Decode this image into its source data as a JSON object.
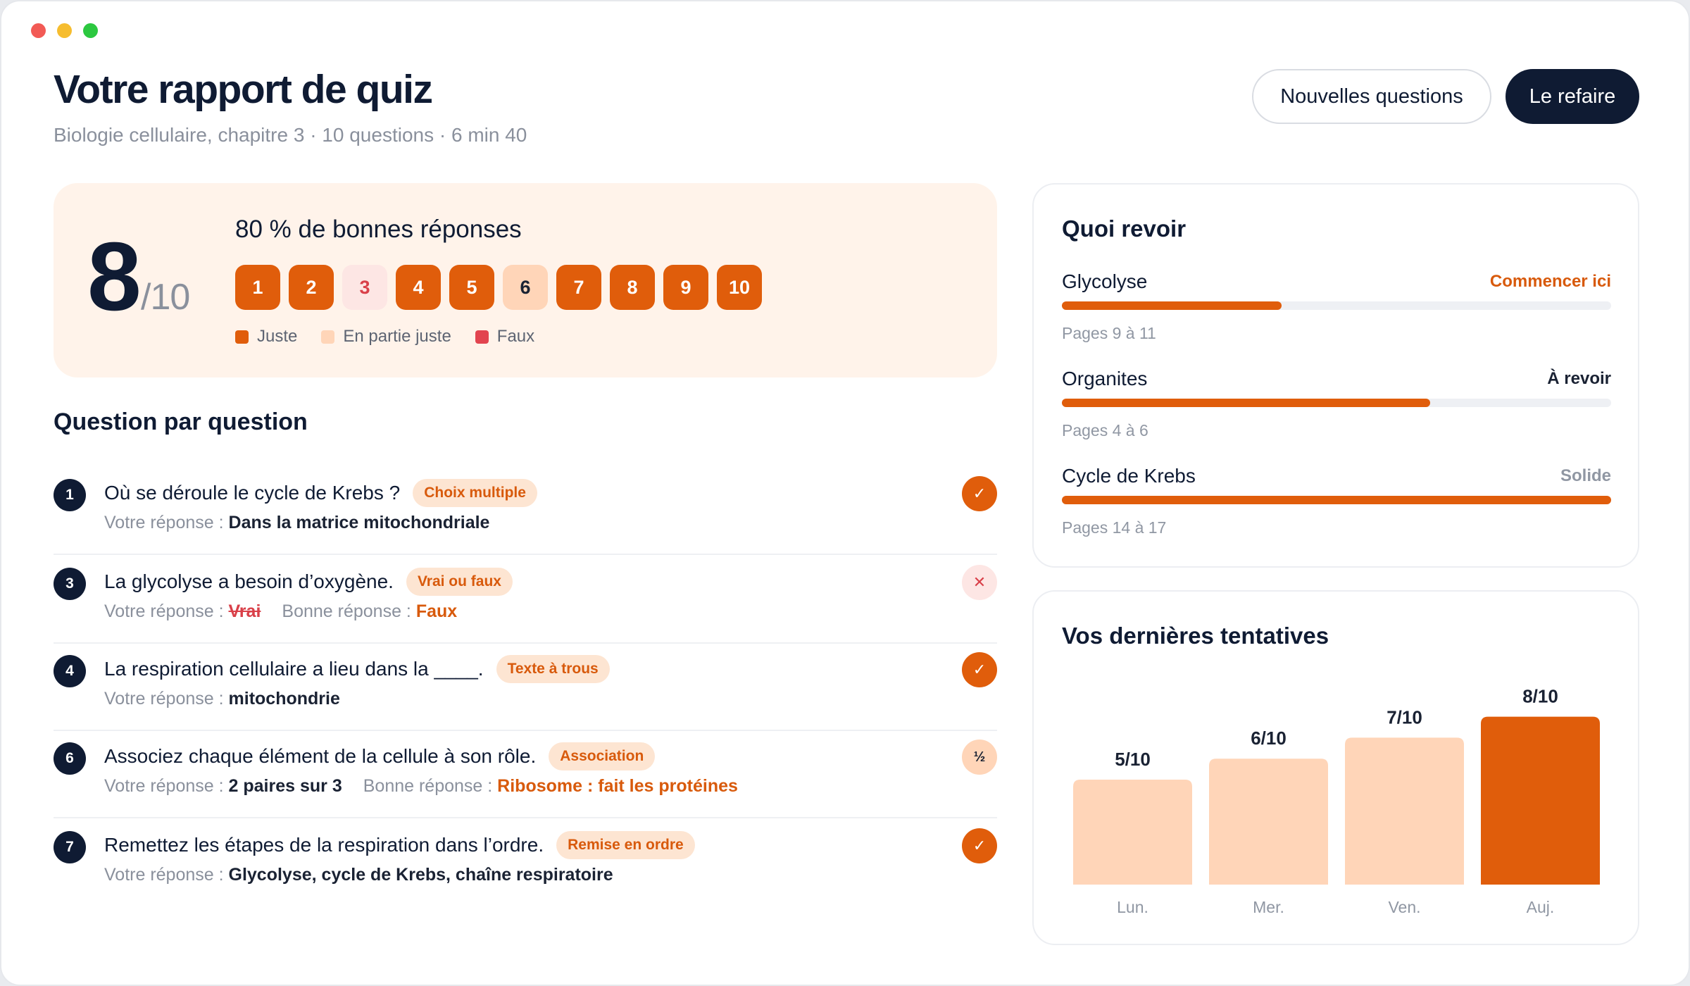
{
  "header": {
    "title": "Votre rapport de quiz",
    "subtitle": "Biologie cellulaire, chapitre 3 · 10 questions · 6 min 40",
    "new_questions_label": "Nouvelles questions",
    "retake_label": "Le refaire"
  },
  "score": {
    "value": "8",
    "denominator": "/10",
    "percent_text": "80 % de bonnes réponses",
    "questions": [
      {
        "label": "1",
        "status": "correct"
      },
      {
        "label": "2",
        "status": "correct"
      },
      {
        "label": "3",
        "status": "wrong"
      },
      {
        "label": "4",
        "status": "correct"
      },
      {
        "label": "5",
        "status": "correct"
      },
      {
        "label": "6",
        "status": "partial"
      },
      {
        "label": "7",
        "status": "correct"
      },
      {
        "label": "8",
        "status": "correct"
      },
      {
        "label": "9",
        "status": "correct"
      },
      {
        "label": "10",
        "status": "correct"
      }
    ],
    "legend": [
      {
        "label": "Juste",
        "color": "#e05d0b"
      },
      {
        "label": "En partie juste",
        "color": "#ffd5b8"
      },
      {
        "label": "Faux",
        "color": "#e2444f"
      }
    ]
  },
  "questions_section": {
    "title": "Question par question",
    "your_answer_label": "Votre réponse :",
    "correct_answer_label": "Bonne réponse :",
    "items": [
      {
        "num": "1",
        "text": "Où se déroule le cycle de Krebs ?",
        "tag": "Choix multiple",
        "answer": "Dans la matrice mitochondriale",
        "correct": "",
        "status": "ok",
        "status_glyph": "✓"
      },
      {
        "num": "3",
        "text": "La glycolyse a besoin d’oxygène.",
        "tag": "Vrai ou faux",
        "answer": "Vrai",
        "correct": "Faux",
        "status": "no",
        "status_glyph": "✕"
      },
      {
        "num": "4",
        "text": "La respiration cellulaire a lieu dans la ____.",
        "tag": "Texte à trous",
        "answer": "mitochondrie",
        "correct": "",
        "status": "ok",
        "status_glyph": "✓"
      },
      {
        "num": "6",
        "text": "Associez chaque élément de la cellule à son rôle.",
        "tag": "Association",
        "answer": "2 paires sur 3",
        "correct": "Ribosome : fait les protéines",
        "status": "half",
        "status_glyph": "½"
      },
      {
        "num": "7",
        "text": "Remettez les étapes de la respiration dans l’ordre.",
        "tag": "Remise en ordre",
        "answer": "Glycolyse, cycle de Krebs, chaîne respiratoire",
        "correct": "",
        "status": "ok",
        "status_glyph": "✓"
      }
    ]
  },
  "review": {
    "title": "Quoi revoir",
    "topics": [
      {
        "name": "Glycolyse",
        "state": "Commencer ici",
        "state_kind": "start",
        "pages": "Pages 9 à 11",
        "progress": 0.4
      },
      {
        "name": "Organites",
        "state": "À revoir",
        "state_kind": "revise",
        "pages": "Pages 4 à 6",
        "progress": 0.67
      },
      {
        "name": "Cycle de Krebs",
        "state": "Solide",
        "state_kind": "solid",
        "pages": "Pages 14 à 17",
        "progress": 1.0
      }
    ]
  },
  "attempts": {
    "title": "Vos dernières tentatives",
    "chart_data": {
      "type": "bar",
      "categories": [
        "Lun.",
        "Mer.",
        "Ven.",
        "Auj."
      ],
      "values": [
        5,
        6,
        7,
        8
      ],
      "data_labels": [
        "5/10",
        "6/10",
        "7/10",
        "8/10"
      ],
      "ylim": [
        0,
        10
      ],
      "colors": [
        "#ffd5b8",
        "#ffd5b8",
        "#ffd5b8",
        "#e05d0b"
      ]
    }
  }
}
